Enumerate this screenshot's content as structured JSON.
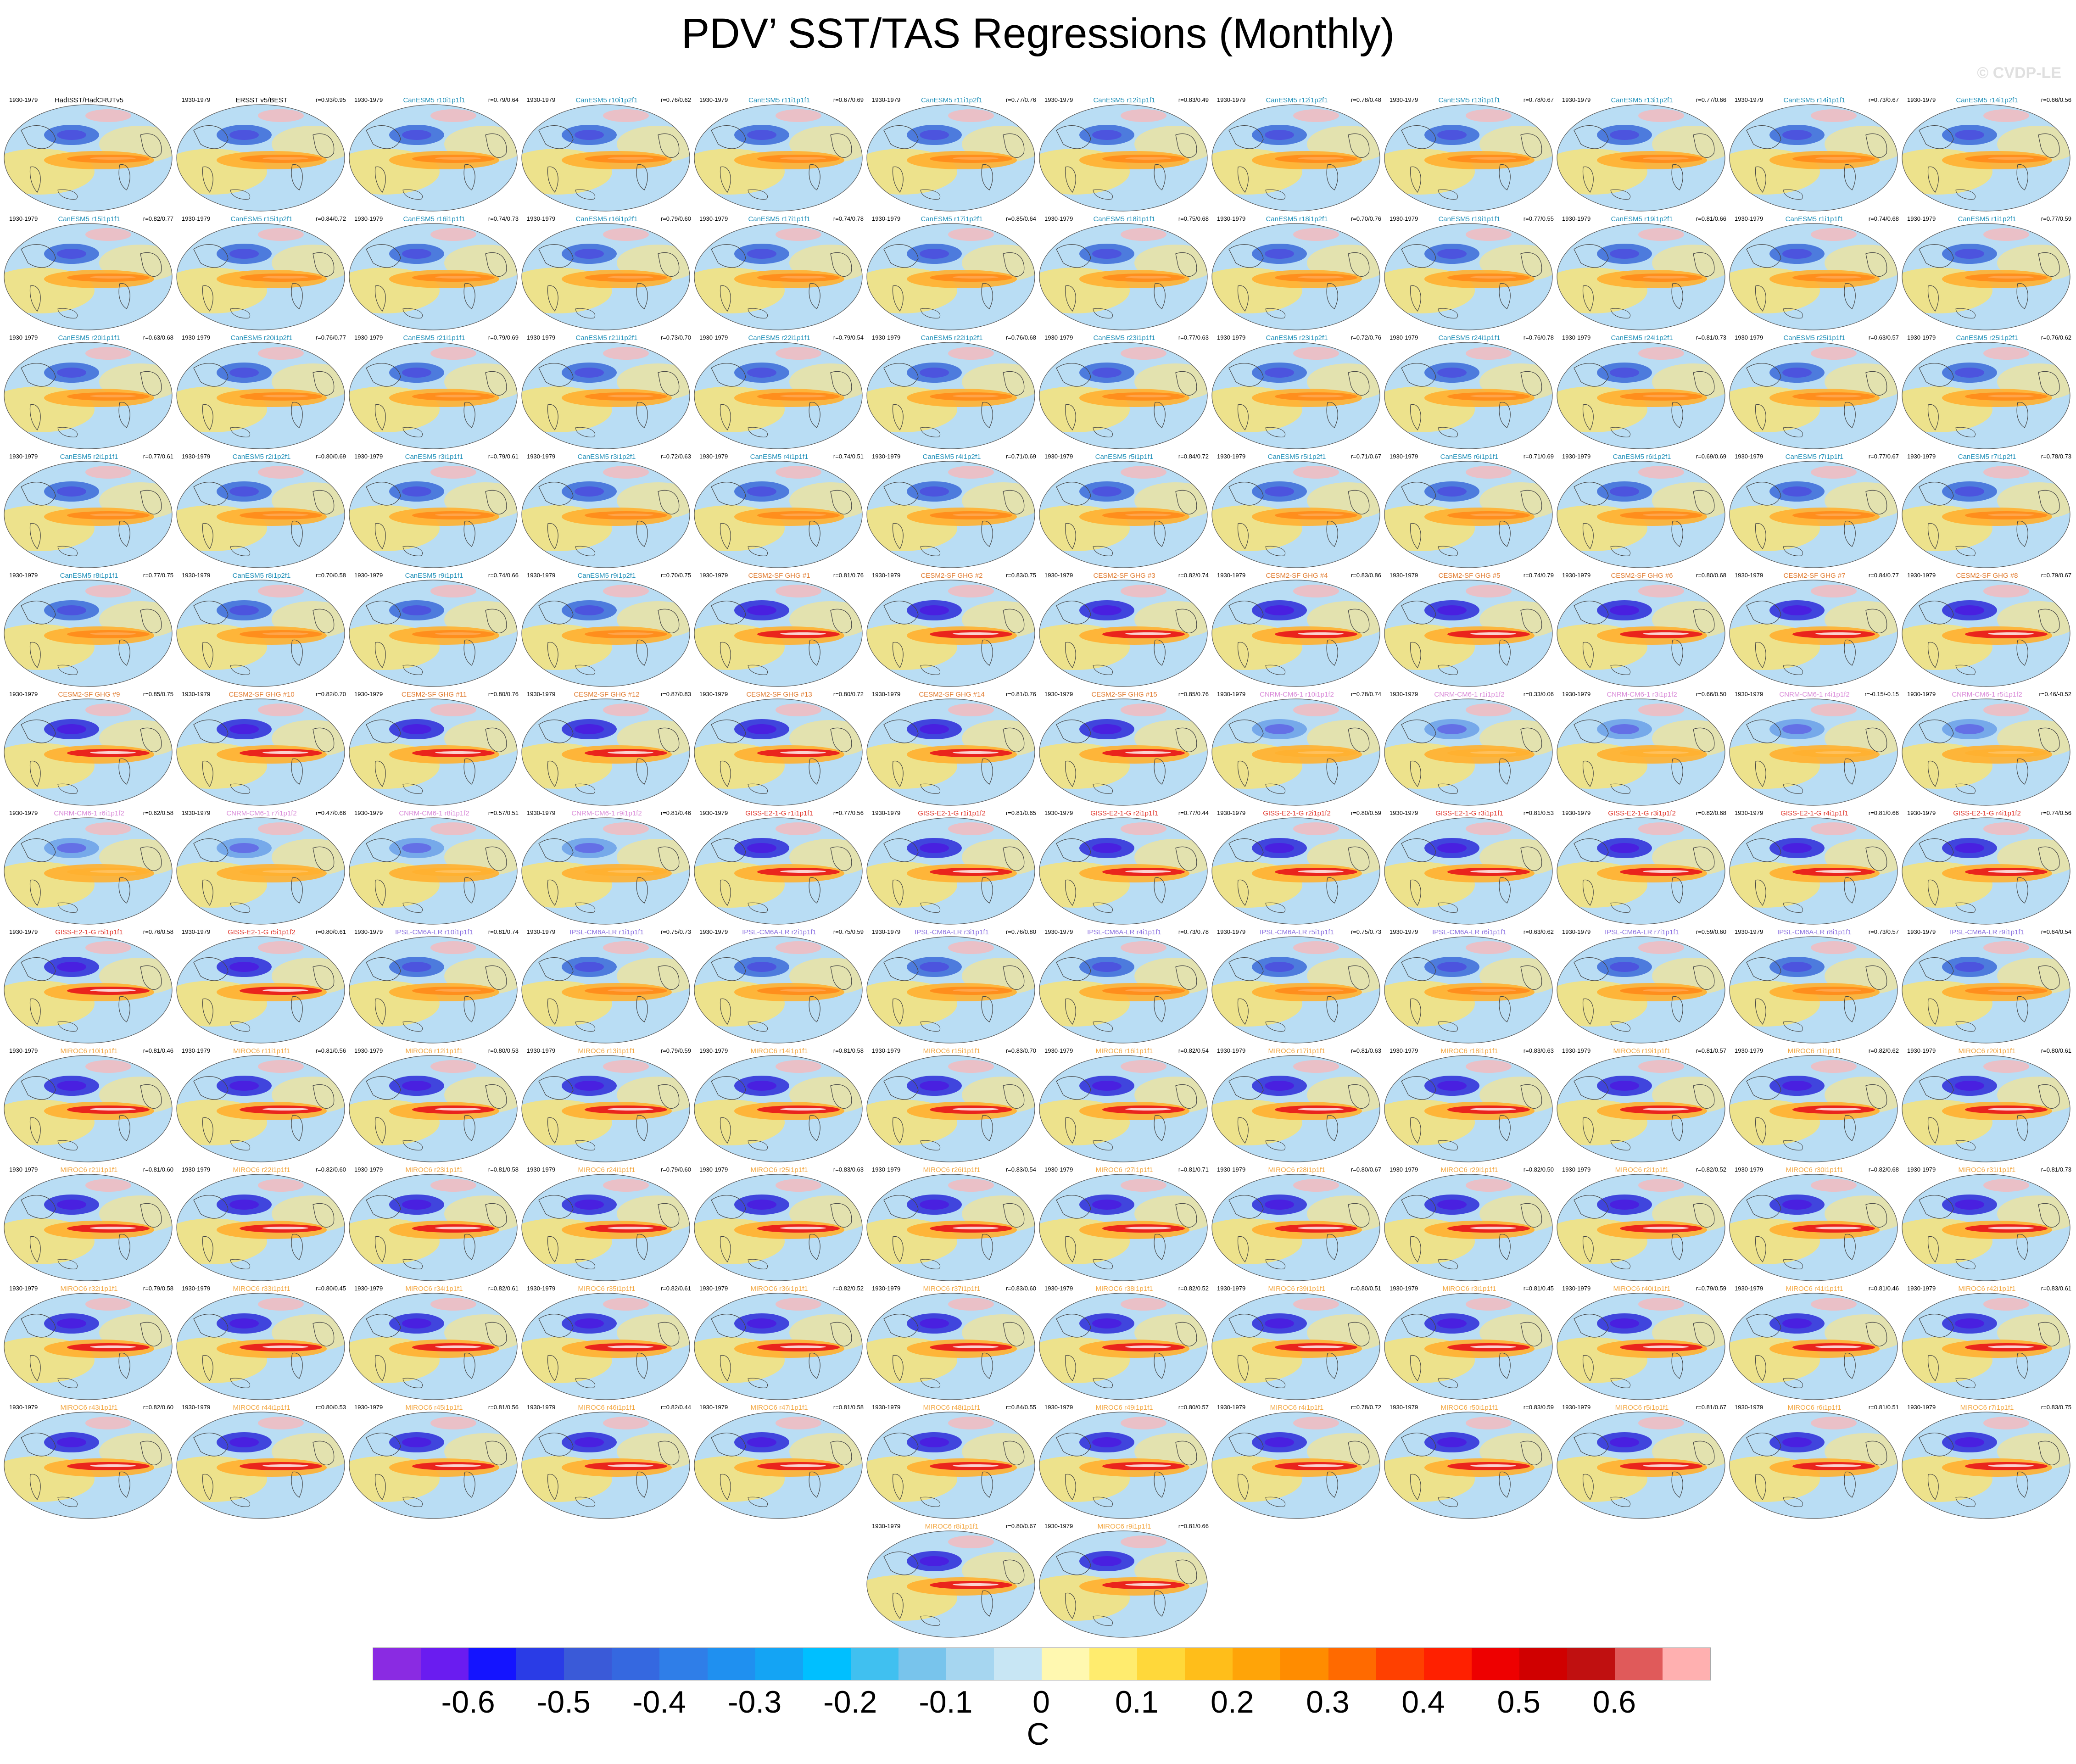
{
  "title": "PDV’ SST/TAS Regressions (Monthly)",
  "watermark": "© CVDP-LE",
  "period": "1930-1979",
  "title_colors": {
    "obs": "#000000",
    "CanESM5": "#1f8fb8",
    "CESM2-SF GHG": "#e07a2e",
    "CNRM-CM6-1": "#d98ad8",
    "GISS-E2-1-G": "#e0362c",
    "IPSL-CM6A-LR": "#8a6fe0",
    "MIROC6": "#f2a640"
  },
  "panels": [
    {
      "title": "HadISST/HadCRUTv5",
      "corr": "",
      "model": "obs"
    },
    {
      "title": "ERSST v5/BEST",
      "corr": "r=0.93/0.95",
      "model": "obs"
    },
    {
      "title": "CanESM5 r10i1p1f1",
      "corr": "r=0.79/0.64",
      "model": "CanESM5"
    },
    {
      "title": "CanESM5 r10i1p2f1",
      "corr": "r=0.76/0.62",
      "model": "CanESM5"
    },
    {
      "title": "CanESM5 r11i1p1f1",
      "corr": "r=0.67/0.69",
      "model": "CanESM5"
    },
    {
      "title": "CanESM5 r11i1p2f1",
      "corr": "r=0.77/0.76",
      "model": "CanESM5"
    },
    {
      "title": "CanESM5 r12i1p1f1",
      "corr": "r=0.83/0.49",
      "model": "CanESM5"
    },
    {
      "title": "CanESM5 r12i1p2f1",
      "corr": "r=0.78/0.48",
      "model": "CanESM5"
    },
    {
      "title": "CanESM5 r13i1p1f1",
      "corr": "r=0.78/0.67",
      "model": "CanESM5"
    },
    {
      "title": "CanESM5 r13i1p2f1",
      "corr": "r=0.77/0.66",
      "model": "CanESM5"
    },
    {
      "title": "CanESM5 r14i1p1f1",
      "corr": "r=0.73/0.67",
      "model": "CanESM5"
    },
    {
      "title": "CanESM5 r14i1p2f1",
      "corr": "r=0.66/0.56",
      "model": "CanESM5"
    },
    {
      "title": "CanESM5 r15i1p1f1",
      "corr": "r=0.82/0.77",
      "model": "CanESM5"
    },
    {
      "title": "CanESM5 r15i1p2f1",
      "corr": "r=0.84/0.72",
      "model": "CanESM5"
    },
    {
      "title": "CanESM5 r16i1p1f1",
      "corr": "r=0.74/0.73",
      "model": "CanESM5"
    },
    {
      "title": "CanESM5 r16i1p2f1",
      "corr": "r=0.79/0.60",
      "model": "CanESM5"
    },
    {
      "title": "CanESM5 r17i1p1f1",
      "corr": "r=0.74/0.78",
      "model": "CanESM5"
    },
    {
      "title": "CanESM5 r17i1p2f1",
      "corr": "r=0.85/0.64",
      "model": "CanESM5"
    },
    {
      "title": "CanESM5 r18i1p1f1",
      "corr": "r=0.75/0.68",
      "model": "CanESM5"
    },
    {
      "title": "CanESM5 r18i1p2f1",
      "corr": "r=0.70/0.76",
      "model": "CanESM5"
    },
    {
      "title": "CanESM5 r19i1p1f1",
      "corr": "r=0.77/0.55",
      "model": "CanESM5"
    },
    {
      "title": "CanESM5 r19i1p2f1",
      "corr": "r=0.81/0.66",
      "model": "CanESM5"
    },
    {
      "title": "CanESM5 r1i1p1f1",
      "corr": "r=0.74/0.68",
      "model": "CanESM5"
    },
    {
      "title": "CanESM5 r1i1p2f1",
      "corr": "r=0.77/0.59",
      "model": "CanESM5"
    },
    {
      "title": "CanESM5 r20i1p1f1",
      "corr": "r=0.63/0.68",
      "model": "CanESM5"
    },
    {
      "title": "CanESM5 r20i1p2f1",
      "corr": "r=0.76/0.77",
      "model": "CanESM5"
    },
    {
      "title": "CanESM5 r21i1p1f1",
      "corr": "r=0.79/0.69",
      "model": "CanESM5"
    },
    {
      "title": "CanESM5 r21i1p2f1",
      "corr": "r=0.73/0.70",
      "model": "CanESM5"
    },
    {
      "title": "CanESM5 r22i1p1f1",
      "corr": "r=0.79/0.54",
      "model": "CanESM5"
    },
    {
      "title": "CanESM5 r22i1p2f1",
      "corr": "r=0.76/0.68",
      "model": "CanESM5"
    },
    {
      "title": "CanESM5 r23i1p1f1",
      "corr": "r=0.77/0.63",
      "model": "CanESM5"
    },
    {
      "title": "CanESM5 r23i1p2f1",
      "corr": "r=0.72/0.76",
      "model": "CanESM5"
    },
    {
      "title": "CanESM5 r24i1p1f1",
      "corr": "r=0.76/0.78",
      "model": "CanESM5"
    },
    {
      "title": "CanESM5 r24i1p2f1",
      "corr": "r=0.81/0.73",
      "model": "CanESM5"
    },
    {
      "title": "CanESM5 r25i1p1f1",
      "corr": "r=0.63/0.57",
      "model": "CanESM5"
    },
    {
      "title": "CanESM5 r25i1p2f1",
      "corr": "r=0.76/0.62",
      "model": "CanESM5"
    },
    {
      "title": "CanESM5 r2i1p1f1",
      "corr": "r=0.77/0.61",
      "model": "CanESM5"
    },
    {
      "title": "CanESM5 r2i1p2f1",
      "corr": "r=0.80/0.69",
      "model": "CanESM5"
    },
    {
      "title": "CanESM5 r3i1p1f1",
      "corr": "r=0.79/0.61",
      "model": "CanESM5"
    },
    {
      "title": "CanESM5 r3i1p2f1",
      "corr": "r=0.72/0.63",
      "model": "CanESM5"
    },
    {
      "title": "CanESM5 r4i1p1f1",
      "corr": "r=0.74/0.51",
      "model": "CanESM5"
    },
    {
      "title": "CanESM5 r4i1p2f1",
      "corr": "r=0.71/0.69",
      "model": "CanESM5"
    },
    {
      "title": "CanESM5 r5i1p1f1",
      "corr": "r=0.84/0.72",
      "model": "CanESM5"
    },
    {
      "title": "CanESM5 r5i1p2f1",
      "corr": "r=0.71/0.67",
      "model": "CanESM5"
    },
    {
      "title": "CanESM5 r6i1p1f1",
      "corr": "r=0.71/0.69",
      "model": "CanESM5"
    },
    {
      "title": "CanESM5 r6i1p2f1",
      "corr": "r=0.69/0.69",
      "model": "CanESM5"
    },
    {
      "title": "CanESM5 r7i1p1f1",
      "corr": "r=0.77/0.67",
      "model": "CanESM5"
    },
    {
      "title": "CanESM5 r7i1p2f1",
      "corr": "r=0.78/0.73",
      "model": "CanESM5"
    },
    {
      "title": "CanESM5 r8i1p1f1",
      "corr": "r=0.77/0.75",
      "model": "CanESM5"
    },
    {
      "title": "CanESM5 r8i1p2f1",
      "corr": "r=0.70/0.58",
      "model": "CanESM5"
    },
    {
      "title": "CanESM5 r9i1p1f1",
      "corr": "r=0.74/0.66",
      "model": "CanESM5"
    },
    {
      "title": "CanESM5 r9i1p2f1",
      "corr": "r=0.70/0.75",
      "model": "CanESM5"
    },
    {
      "title": "CESM2-SF GHG #1",
      "corr": "r=0.81/0.76",
      "model": "CESM2-SF GHG"
    },
    {
      "title": "CESM2-SF GHG #2",
      "corr": "r=0.83/0.75",
      "model": "CESM2-SF GHG"
    },
    {
      "title": "CESM2-SF GHG #3",
      "corr": "r=0.82/0.74",
      "model": "CESM2-SF GHG"
    },
    {
      "title": "CESM2-SF GHG #4",
      "corr": "r=0.83/0.86",
      "model": "CESM2-SF GHG"
    },
    {
      "title": "CESM2-SF GHG #5",
      "corr": "r=0.74/0.79",
      "model": "CESM2-SF GHG"
    },
    {
      "title": "CESM2-SF GHG #6",
      "corr": "r=0.80/0.68",
      "model": "CESM2-SF GHG"
    },
    {
      "title": "CESM2-SF GHG #7",
      "corr": "r=0.84/0.77",
      "model": "CESM2-SF GHG"
    },
    {
      "title": "CESM2-SF GHG #8",
      "corr": "r=0.79/0.67",
      "model": "CESM2-SF GHG"
    },
    {
      "title": "CESM2-SF GHG #9",
      "corr": "r=0.85/0.75",
      "model": "CESM2-SF GHG"
    },
    {
      "title": "CESM2-SF GHG #10",
      "corr": "r=0.82/0.70",
      "model": "CESM2-SF GHG"
    },
    {
      "title": "CESM2-SF GHG #11",
      "corr": "r=0.80/0.76",
      "model": "CESM2-SF GHG"
    },
    {
      "title": "CESM2-SF GHG #12",
      "corr": "r=0.87/0.83",
      "model": "CESM2-SF GHG"
    },
    {
      "title": "CESM2-SF GHG #13",
      "corr": "r=0.80/0.72",
      "model": "CESM2-SF GHG"
    },
    {
      "title": "CESM2-SF GHG #14",
      "corr": "r=0.81/0.76",
      "model": "CESM2-SF GHG"
    },
    {
      "title": "CESM2-SF GHG #15",
      "corr": "r=0.85/0.76",
      "model": "CESM2-SF GHG"
    },
    {
      "title": "CNRM-CM6-1 r10i1p1f2",
      "corr": "r=0.78/0.74",
      "model": "CNRM-CM6-1"
    },
    {
      "title": "CNRM-CM6-1 r1i1p1f2",
      "corr": "r=0.33/0.06",
      "model": "CNRM-CM6-1"
    },
    {
      "title": "CNRM-CM6-1 r3i1p1f2",
      "corr": "r=0.66/0.50",
      "model": "CNRM-CM6-1"
    },
    {
      "title": "CNRM-CM6-1 r4i1p1f2",
      "corr": "r=-0.15/-0.15",
      "model": "CNRM-CM6-1"
    },
    {
      "title": "CNRM-CM6-1 r5i1p1f2",
      "corr": "r=0.46/-0.52",
      "model": "CNRM-CM6-1"
    },
    {
      "title": "CNRM-CM6-1 r6i1p1f2",
      "corr": "r=0.62/0.58",
      "model": "CNRM-CM6-1"
    },
    {
      "title": "CNRM-CM6-1 r7i1p1f2",
      "corr": "r=0.47/0.66",
      "model": "CNRM-CM6-1"
    },
    {
      "title": "CNRM-CM6-1 r8i1p1f2",
      "corr": "r=0.57/0.51",
      "model": "CNRM-CM6-1"
    },
    {
      "title": "CNRM-CM6-1 r9i1p1f2",
      "corr": "r=0.81/0.46",
      "model": "CNRM-CM6-1"
    },
    {
      "title": "GISS-E2-1-G r1i1p1f1",
      "corr": "r=0.77/0.56",
      "model": "GISS-E2-1-G"
    },
    {
      "title": "GISS-E2-1-G r1i1p1f2",
      "corr": "r=0.81/0.65",
      "model": "GISS-E2-1-G"
    },
    {
      "title": "GISS-E2-1-G r2i1p1f1",
      "corr": "r=0.77/0.44",
      "model": "GISS-E2-1-G"
    },
    {
      "title": "GISS-E2-1-G r2i1p1f2",
      "corr": "r=0.80/0.59",
      "model": "GISS-E2-1-G"
    },
    {
      "title": "GISS-E2-1-G r3i1p1f1",
      "corr": "r=0.81/0.53",
      "model": "GISS-E2-1-G"
    },
    {
      "title": "GISS-E2-1-G r3i1p1f2",
      "corr": "r=0.82/0.68",
      "model": "GISS-E2-1-G"
    },
    {
      "title": "GISS-E2-1-G r4i1p1f1",
      "corr": "r=0.81/0.66",
      "model": "GISS-E2-1-G"
    },
    {
      "title": "GISS-E2-1-G r4i1p1f2",
      "corr": "r=0.74/0.56",
      "model": "GISS-E2-1-G"
    },
    {
      "title": "GISS-E2-1-G r5i1p1f1",
      "corr": "r=0.76/0.58",
      "model": "GISS-E2-1-G"
    },
    {
      "title": "GISS-E2-1-G r5i1p1f2",
      "corr": "r=0.80/0.61",
      "model": "GISS-E2-1-G"
    },
    {
      "title": "IPSL-CM6A-LR r10i1p1f1",
      "corr": "r=0.81/0.74",
      "model": "IPSL-CM6A-LR"
    },
    {
      "title": "IPSL-CM6A-LR r1i1p1f1",
      "corr": "r=0.75/0.73",
      "model": "IPSL-CM6A-LR"
    },
    {
      "title": "IPSL-CM6A-LR r2i1p1f1",
      "corr": "r=0.75/0.59",
      "model": "IPSL-CM6A-LR"
    },
    {
      "title": "IPSL-CM6A-LR r3i1p1f1",
      "corr": "r=0.76/0.80",
      "model": "IPSL-CM6A-LR"
    },
    {
      "title": "IPSL-CM6A-LR r4i1p1f1",
      "corr": "r=0.73/0.78",
      "model": "IPSL-CM6A-LR"
    },
    {
      "title": "IPSL-CM6A-LR r5i1p1f1",
      "corr": "r=0.75/0.73",
      "model": "IPSL-CM6A-LR"
    },
    {
      "title": "IPSL-CM6A-LR r6i1p1f1",
      "corr": "r=0.63/0.62",
      "model": "IPSL-CM6A-LR"
    },
    {
      "title": "IPSL-CM6A-LR r7i1p1f1",
      "corr": "r=0.59/0.60",
      "model": "IPSL-CM6A-LR"
    },
    {
      "title": "IPSL-CM6A-LR r8i1p1f1",
      "corr": "r=0.73/0.57",
      "model": "IPSL-CM6A-LR"
    },
    {
      "title": "IPSL-CM6A-LR r9i1p1f1",
      "corr": "r=0.64/0.54",
      "model": "IPSL-CM6A-LR"
    },
    {
      "title": "MIROC6 r10i1p1f1",
      "corr": "r=0.81/0.46",
      "model": "MIROC6"
    },
    {
      "title": "MIROC6 r11i1p1f1",
      "corr": "r=0.81/0.56",
      "model": "MIROC6"
    },
    {
      "title": "MIROC6 r12i1p1f1",
      "corr": "r=0.80/0.53",
      "model": "MIROC6"
    },
    {
      "title": "MIROC6 r13i1p1f1",
      "corr": "r=0.79/0.59",
      "model": "MIROC6"
    },
    {
      "title": "MIROC6 r14i1p1f1",
      "corr": "r=0.81/0.58",
      "model": "MIROC6"
    },
    {
      "title": "MIROC6 r15i1p1f1",
      "corr": "r=0.83/0.70",
      "model": "MIROC6"
    },
    {
      "title": "MIROC6 r16i1p1f1",
      "corr": "r=0.82/0.54",
      "model": "MIROC6"
    },
    {
      "title": "MIROC6 r17i1p1f1",
      "corr": "r=0.81/0.63",
      "model": "MIROC6"
    },
    {
      "title": "MIROC6 r18i1p1f1",
      "corr": "r=0.83/0.63",
      "model": "MIROC6"
    },
    {
      "title": "MIROC6 r19i1p1f1",
      "corr": "r=0.81/0.57",
      "model": "MIROC6"
    },
    {
      "title": "MIROC6 r1i1p1f1",
      "corr": "r=0.82/0.62",
      "model": "MIROC6"
    },
    {
      "title": "MIROC6 r20i1p1f1",
      "corr": "r=0.80/0.61",
      "model": "MIROC6"
    },
    {
      "title": "MIROC6 r21i1p1f1",
      "corr": "r=0.81/0.60",
      "model": "MIROC6"
    },
    {
      "title": "MIROC6 r22i1p1f1",
      "corr": "r=0.82/0.60",
      "model": "MIROC6"
    },
    {
      "title": "MIROC6 r23i1p1f1",
      "corr": "r=0.81/0.58",
      "model": "MIROC6"
    },
    {
      "title": "MIROC6 r24i1p1f1",
      "corr": "r=0.79/0.60",
      "model": "MIROC6"
    },
    {
      "title": "MIROC6 r25i1p1f1",
      "corr": "r=0.83/0.63",
      "model": "MIROC6"
    },
    {
      "title": "MIROC6 r26i1p1f1",
      "corr": "r=0.83/0.54",
      "model": "MIROC6"
    },
    {
      "title": "MIROC6 r27i1p1f1",
      "corr": "r=0.81/0.71",
      "model": "MIROC6"
    },
    {
      "title": "MIROC6 r28i1p1f1",
      "corr": "r=0.80/0.67",
      "model": "MIROC6"
    },
    {
      "title": "MIROC6 r29i1p1f1",
      "corr": "r=0.82/0.50",
      "model": "MIROC6"
    },
    {
      "title": "MIROC6 r2i1p1f1",
      "corr": "r=0.82/0.52",
      "model": "MIROC6"
    },
    {
      "title": "MIROC6 r30i1p1f1",
      "corr": "r=0.82/0.68",
      "model": "MIROC6"
    },
    {
      "title": "MIROC6 r31i1p1f1",
      "corr": "r=0.81/0.73",
      "model": "MIROC6"
    },
    {
      "title": "MIROC6 r32i1p1f1",
      "corr": "r=0.79/0.58",
      "model": "MIROC6"
    },
    {
      "title": "MIROC6 r33i1p1f1",
      "corr": "r=0.80/0.45",
      "model": "MIROC6"
    },
    {
      "title": "MIROC6 r34i1p1f1",
      "corr": "r=0.82/0.61",
      "model": "MIROC6"
    },
    {
      "title": "MIROC6 r35i1p1f1",
      "corr": "r=0.82/0.61",
      "model": "MIROC6"
    },
    {
      "title": "MIROC6 r36i1p1f1",
      "corr": "r=0.82/0.52",
      "model": "MIROC6"
    },
    {
      "title": "MIROC6 r37i1p1f1",
      "corr": "r=0.83/0.60",
      "model": "MIROC6"
    },
    {
      "title": "MIROC6 r38i1p1f1",
      "corr": "r=0.82/0.52",
      "model": "MIROC6"
    },
    {
      "title": "MIROC6 r39i1p1f1",
      "corr": "r=0.80/0.51",
      "model": "MIROC6"
    },
    {
      "title": "MIROC6 r3i1p1f1",
      "corr": "r=0.81/0.45",
      "model": "MIROC6"
    },
    {
      "title": "MIROC6 r40i1p1f1",
      "corr": "r=0.79/0.59",
      "model": "MIROC6"
    },
    {
      "title": "MIROC6 r41i1p1f1",
      "corr": "r=0.81/0.46",
      "model": "MIROC6"
    },
    {
      "title": "MIROC6 r42i1p1f1",
      "corr": "r=0.83/0.61",
      "model": "MIROC6"
    },
    {
      "title": "MIROC6 r43i1p1f1",
      "corr": "r=0.82/0.60",
      "model": "MIROC6"
    },
    {
      "title": "MIROC6 r44i1p1f1",
      "corr": "r=0.80/0.53",
      "model": "MIROC6"
    },
    {
      "title": "MIROC6 r45i1p1f1",
      "corr": "r=0.81/0.56",
      "model": "MIROC6"
    },
    {
      "title": "MIROC6 r46i1p1f1",
      "corr": "r=0.82/0.44",
      "model": "MIROC6"
    },
    {
      "title": "MIROC6 r47i1p1f1",
      "corr": "r=0.81/0.58",
      "model": "MIROC6"
    },
    {
      "title": "MIROC6 r48i1p1f1",
      "corr": "r=0.84/0.55",
      "model": "MIROC6"
    },
    {
      "title": "MIROC6 r49i1p1f1",
      "corr": "r=0.80/0.57",
      "model": "MIROC6"
    },
    {
      "title": "MIROC6 r4i1p1f1",
      "corr": "r=0.78/0.72",
      "model": "MIROC6"
    },
    {
      "title": "MIROC6 r50i1p1f1",
      "corr": "r=0.83/0.59",
      "model": "MIROC6"
    },
    {
      "title": "MIROC6 r5i1p1f1",
      "corr": "r=0.81/0.67",
      "model": "MIROC6"
    },
    {
      "title": "MIROC6 r6i1p1f1",
      "corr": "r=0.81/0.51",
      "model": "MIROC6"
    },
    {
      "title": "MIROC6 r7i1p1f1",
      "corr": "r=0.83/0.75",
      "model": "MIROC6"
    },
    {
      "title": "MIROC6 r8i1p1f1",
      "corr": "r=0.80/0.67",
      "model": "MIROC6"
    },
    {
      "title": "MIROC6 r9i1p1f1",
      "corr": "r=0.81/0.66",
      "model": "MIROC6"
    }
  ],
  "colorbar": {
    "colors": [
      "#8a2be2",
      "#6a1cf0",
      "#1414ff",
      "#2a3ce6",
      "#3a5ad8",
      "#3568e0",
      "#2f7ee8",
      "#1f90f0",
      "#14a4f4",
      "#00bfff",
      "#40c0f0",
      "#78c4ec",
      "#a6d6f0",
      "#c8e6f4",
      "#fff8b0",
      "#ffec6e",
      "#ffd83a",
      "#ffbe1a",
      "#ffa408",
      "#ff8c00",
      "#ff6a00",
      "#ff4000",
      "#ff2000",
      "#ee0000",
      "#d00000",
      "#c01010",
      "#e05a5a",
      "#ffb0b0"
    ],
    "ticks": [
      "-0.6",
      "-0.5",
      "-0.4",
      "-0.3",
      "-0.2",
      "-0.1",
      "0",
      "0.1",
      "0.2",
      "0.3",
      "0.4",
      "0.5",
      "0.6"
    ],
    "units": "C"
  }
}
